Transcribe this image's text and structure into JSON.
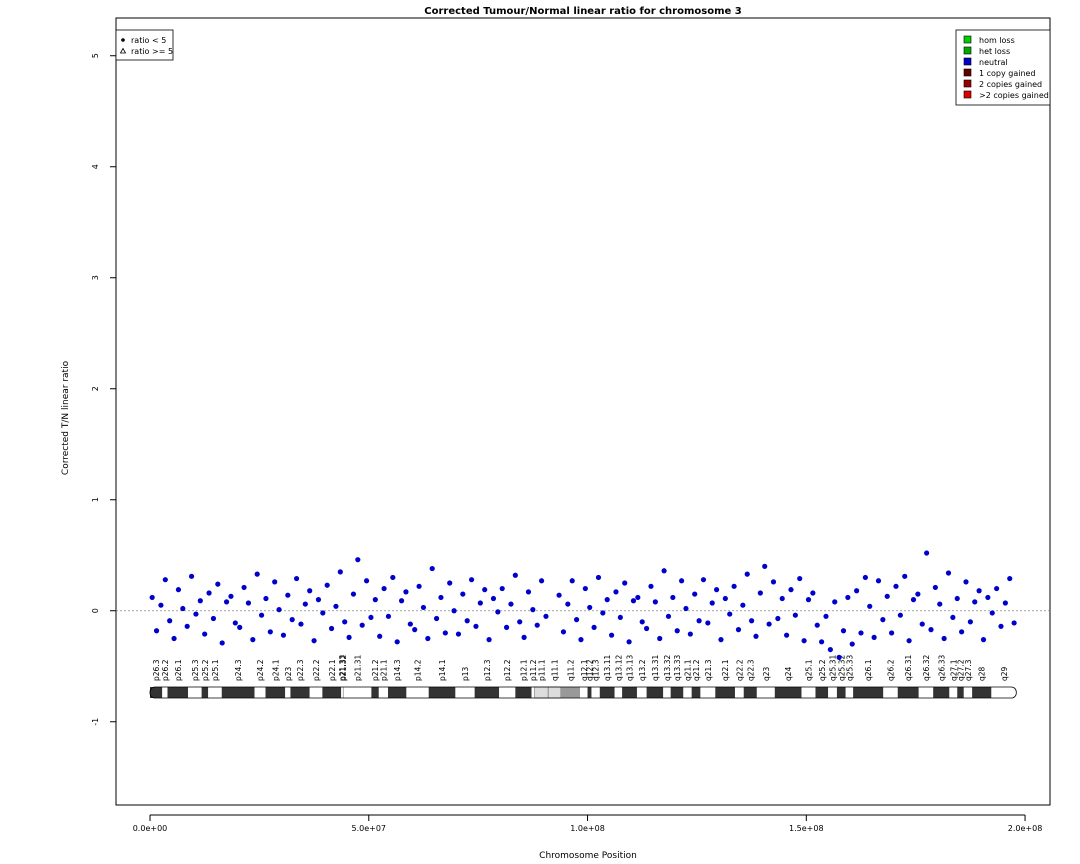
{
  "chart_data": {
    "type": "scatter",
    "title": "Corrected Tumour/Normal linear ratio for chromosome  3",
    "x_label": "Chromosome Position",
    "y_label": "Corrected T/N linear ratio",
    "xlim": [
      -7770000.0,
      205700000.0
    ],
    "ylim": [
      -1.75,
      5.34
    ],
    "xticks": [
      {
        "value": 0,
        "label": "0.0e+00"
      },
      {
        "value": 50000000.0,
        "label": "5.0e+07"
      },
      {
        "value": 100000000.0,
        "label": "1.0e+08"
      },
      {
        "value": 150000000.0,
        "label": "1.5e+08"
      },
      {
        "value": 200000000.0,
        "label": "2.0e+08"
      }
    ],
    "yticks": [
      -1,
      0,
      1,
      2,
      3,
      4,
      5
    ],
    "hline": 0,
    "series": [
      {
        "name": "neutral",
        "color": "#0000cc",
        "x": [
          500000.0,
          1500000.0,
          2500000.0,
          3500000.0,
          4500000.0,
          5500000.0,
          6500000.0,
          7500000.0,
          8500000.0,
          9500000.0,
          10500000.0,
          11500000.0,
          12500000.0,
          13500000.0,
          14500000.0,
          15500000.0,
          16500000.0,
          17500000.0,
          18500000.0,
          19500000.0,
          20500000.0,
          21500000.0,
          22500000.0,
          23500000.0,
          24500000.0,
          25500000.0,
          26500000.0,
          27500000.0,
          28500000.0,
          29500000.0,
          30500000.0,
          31500000.0,
          32500000.0,
          33500000.0,
          34500000.0,
          35500000.0,
          36500000.0,
          37500000.0,
          38500000.0,
          39500000.0,
          40500000.0,
          41500000.0,
          42500000.0,
          43500000.0,
          44500000.0,
          45500000.0,
          46500000.0,
          47500000.0,
          48500000.0,
          49500000.0,
          50500000.0,
          51500000.0,
          52500000.0,
          53500000.0,
          54500000.0,
          55500000.0,
          56500000.0,
          57500000.0,
          58500000.0,
          59500000.0,
          60500000.0,
          61500000.0,
          62500000.0,
          63500000.0,
          64500000.0,
          65500000.0,
          66500000.0,
          67500000.0,
          68500000.0,
          69500000.0,
          70500000.0,
          71500000.0,
          72500000.0,
          73500000.0,
          74500000.0,
          75500000.0,
          76500000.0,
          77500000.0,
          78500000.0,
          79500000.0,
          80500000.0,
          81500000.0,
          82500000.0,
          83500000.0,
          84500000.0,
          85500000.0,
          86500000.0,
          87500000.0,
          88500000.0,
          89500000.0,
          90500000.0,
          93500000.0,
          94500000.0,
          95500000.0,
          96500000.0,
          97500000.0,
          98500000.0,
          99500000.0,
          100500000.0,
          101500000.0,
          102500000.0,
          103500000.0,
          104500000.0,
          105500000.0,
          106500000.0,
          107500000.0,
          108500000.0,
          109500000.0,
          110500000.0,
          111500000.0,
          112500000.0,
          113500000.0,
          114500000.0,
          115500000.0,
          116500000.0,
          117500000.0,
          118500000.0,
          119500000.0,
          120500000.0,
          121500000.0,
          122500000.0,
          123500000.0,
          124500000.0,
          125500000.0,
          126500000.0,
          127500000.0,
          128500000.0,
          129500000.0,
          130500000.0,
          131500000.0,
          132500000.0,
          133500000.0,
          134500000.0,
          135500000.0,
          136500000.0,
          137500000.0,
          138500000.0,
          139500000.0,
          140500000.0,
          141500000.0,
          142500000.0,
          143500000.0,
          144500000.0,
          145500000.0,
          146500000.0,
          147500000.0,
          148500000.0,
          149500000.0,
          150500000.0,
          151500000.0,
          152500000.0,
          153500000.0,
          154500000.0,
          155500000.0,
          156500000.0,
          157500000.0,
          158500000.0,
          159500000.0,
          160500000.0,
          161500000.0,
          162500000.0,
          163500000.0,
          164500000.0,
          165500000.0,
          166500000.0,
          167500000.0,
          168500000.0,
          169500000.0,
          170500000.0,
          171500000.0,
          172500000.0,
          173500000.0,
          174500000.0,
          175500000.0,
          176500000.0,
          177500000.0,
          178500000.0,
          179500000.0,
          180500000.0,
          181500000.0,
          182500000.0,
          183500000.0,
          184500000.0,
          185500000.0,
          186500000.0,
          187500000.0,
          188500000.0,
          189500000.0,
          190500000.0,
          191500000.0,
          192500000.0,
          193500000.0,
          194500000.0,
          195500000.0,
          196500000.0,
          197500000.0
        ],
        "values": [
          0.12,
          -0.18,
          0.05,
          0.28,
          -0.09,
          -0.25,
          0.19,
          0.02,
          -0.14,
          0.31,
          -0.03,
          0.09,
          -0.21,
          0.16,
          -0.07,
          0.24,
          -0.29,
          0.08,
          0.13,
          -0.11,
          -0.15,
          0.21,
          0.07,
          -0.26,
          0.33,
          -0.04,
          0.11,
          -0.19,
          0.26,
          0.01,
          -0.22,
          0.14,
          -0.08,
          0.29,
          -0.12,
          0.06,
          0.18,
          -0.27,
          0.1,
          -0.02,
          0.23,
          -0.16,
          0.04,
          0.35,
          -0.1,
          -0.24,
          0.15,
          0.46,
          -0.13,
          0.27,
          -0.06,
          0.1,
          -0.23,
          0.2,
          -0.05,
          0.3,
          -0.28,
          0.09,
          0.17,
          -0.12,
          -0.17,
          0.22,
          0.03,
          -0.25,
          0.38,
          -0.07,
          0.12,
          -0.2,
          0.25,
          0.0,
          -0.21,
          0.15,
          -0.09,
          0.28,
          -0.14,
          0.07,
          0.19,
          -0.26,
          0.11,
          -0.01,
          0.2,
          -0.15,
          0.06,
          0.32,
          -0.1,
          -0.24,
          0.17,
          0.01,
          -0.13,
          0.27,
          -0.05,
          0.14,
          -0.19,
          0.06,
          0.27,
          -0.08,
          -0.26,
          0.2,
          0.03,
          -0.15,
          0.3,
          -0.02,
          0.1,
          -0.22,
          0.17,
          -0.06,
          0.25,
          -0.28,
          0.09,
          0.12,
          -0.1,
          -0.16,
          0.22,
          0.08,
          -0.25,
          0.36,
          -0.05,
          0.12,
          -0.18,
          0.27,
          0.02,
          -0.21,
          0.15,
          -0.09,
          0.28,
          -0.11,
          0.07,
          0.19,
          -0.26,
          0.11,
          -0.03,
          0.22,
          -0.17,
          0.05,
          0.33,
          -0.09,
          -0.23,
          0.16,
          0.4,
          -0.12,
          0.26,
          -0.07,
          0.11,
          -0.22,
          0.19,
          -0.04,
          0.29,
          -0.27,
          0.1,
          0.16,
          -0.13,
          -0.28,
          -0.05,
          -0.35,
          0.08,
          -0.42,
          -0.18,
          0.12,
          -0.3,
          0.18,
          -0.2,
          0.3,
          0.04,
          -0.24,
          0.27,
          -0.08,
          0.13,
          -0.2,
          0.22,
          -0.04,
          0.31,
          -0.27,
          0.1,
          0.15,
          -0.12,
          0.52,
          -0.17,
          0.21,
          0.06,
          -0.25,
          0.34,
          -0.06,
          0.11,
          -0.19,
          0.26,
          -0.1,
          0.08,
          0.18,
          -0.26,
          0.12,
          -0.02,
          0.2,
          -0.14,
          0.07,
          0.29,
          -0.11
        ]
      }
    ],
    "point_legend": [
      "ratio < 5",
      "ratio >= 5"
    ],
    "legend": [
      {
        "name": "hom loss",
        "color": "#00cc00"
      },
      {
        "name": "het loss",
        "color": "#00aa00"
      },
      {
        "name": "neutral",
        "color": "#0000cc"
      },
      {
        "name": "1 copy gained",
        "color": "#660000"
      },
      {
        "name": "2 copies gained",
        "color": "#990000"
      },
      {
        "name": ">2 copies gained",
        "color": "#dd0000"
      }
    ],
    "ideogram": {
      "stain_colors": {
        "gneg": "#ffffff",
        "gpos25": "#333333",
        "gpos50": "#333333",
        "gpos75": "#333333",
        "gpos100": "#333333",
        "gvar": "#999999",
        "acen": "#dddddd"
      },
      "names": [
        "p26.3",
        "p26.2",
        "p26.1",
        "p25.3",
        "p25.2",
        "p25.1",
        "p24.3",
        "p24.2",
        "p24.1",
        "p23",
        "p22.3",
        "p22.2",
        "p22.1",
        "p21.33",
        "p21.32",
        "p21.31",
        "p21.2",
        "p21.1",
        "p14.3",
        "p14.2",
        "p14.1",
        "p13",
        "p12.3",
        "p12.2",
        "p12.1",
        "p11.2",
        "p11.1",
        "q11.1",
        "q11.2",
        "q12.1",
        "q12.2",
        "q12.3",
        "q13.11",
        "q13.12",
        "q13.13",
        "q13.2",
        "q13.31",
        "q13.32",
        "q13.33",
        "q21.1",
        "q21.2",
        "q21.3",
        "q22.1",
        "q22.2",
        "q22.3",
        "q23",
        "q24",
        "q25.1",
        "q25.2",
        "q25.31",
        "q25.32",
        "q25.33",
        "q26.1",
        "q26.2",
        "q26.31",
        "q26.32",
        "q26.33",
        "q27.1",
        "q27.2",
        "q27.3",
        "q28",
        "q29"
      ],
      "starts": [
        0,
        2800000.0,
        4000000.0,
        8700000.0,
        11800000.0,
        13300000.0,
        16400000.0,
        23900000.0,
        26400000.0,
        30900000.0,
        32100000.0,
        36500000.0,
        39400000.0,
        43700000.0,
        44100000.0,
        44200000.0,
        50600000.0,
        52300000.0,
        54400000.0,
        58600000.0,
        63700000.0,
        69800000.0,
        74200000.0,
        79800000.0,
        83500000.0,
        87200000.0,
        87900000.0,
        91000000.0,
        93900000.0,
        98300000.0,
        100000000.0,
        100900000.0,
        102800000.0,
        106200000.0,
        107900000.0,
        111300000.0,
        113500000.0,
        117300000.0,
        119000000.0,
        121900000.0,
        123800000.0,
        125800000.0,
        129200000.0,
        133700000.0,
        135700000.0,
        138700000.0,
        142800000.0,
        148900000.0,
        152100000.0,
        155000000.0,
        157000000.0,
        159000000.0,
        160700000.0,
        167600000.0,
        170900000.0,
        175700000.0,
        179000000.0,
        182700000.0,
        184500000.0,
        186000000.0,
        187900000.0,
        192300000.0
      ],
      "ends": [
        2800000.0,
        4000000.0,
        8700000.0,
        11800000.0,
        13300000.0,
        16400000.0,
        23900000.0,
        26400000.0,
        30900000.0,
        32100000.0,
        36500000.0,
        39400000.0,
        43700000.0,
        44100000.0,
        44200000.0,
        50600000.0,
        52300000.0,
        54400000.0,
        58600000.0,
        63700000.0,
        69800000.0,
        74200000.0,
        79800000.0,
        83500000.0,
        87200000.0,
        87900000.0,
        91000000.0,
        93900000.0,
        98300000.0,
        100000000.0,
        100900000.0,
        102800000.0,
        106200000.0,
        107900000.0,
        111300000.0,
        113500000.0,
        117300000.0,
        119000000.0,
        121900000.0,
        123800000.0,
        125800000.0,
        129200000.0,
        133700000.0,
        135700000.0,
        138700000.0,
        142800000.0,
        148900000.0,
        152100000.0,
        155000000.0,
        157000000.0,
        159000000.0,
        160700000.0,
        167600000.0,
        170900000.0,
        175700000.0,
        179000000.0,
        182700000.0,
        184500000.0,
        186000000.0,
        187900000.0,
        192300000.0,
        198000000.0
      ],
      "stains": [
        "gpos50",
        "gneg",
        "gpos50",
        "gneg",
        "gpos25",
        "gneg",
        "gpos100",
        "gneg",
        "gpos75",
        "gneg",
        "gpos50",
        "gneg",
        "gpos75",
        "gneg",
        "gpos50",
        "gneg",
        "gpos25",
        "gneg",
        "gpos50",
        "gneg",
        "gpos50",
        "gneg",
        "gpos75",
        "gneg",
        "gpos75",
        "gneg",
        "acen",
        "acen",
        "gvar",
        "gneg",
        "gpos25",
        "gneg",
        "gpos75",
        "gneg",
        "gpos50",
        "gneg",
        "gpos100",
        "gneg",
        "gpos75",
        "gneg",
        "gpos25",
        "gneg",
        "gpos25",
        "gneg",
        "gpos25",
        "gneg",
        "gpos100",
        "gneg",
        "gpos50",
        "gneg",
        "gpos50",
        "gneg",
        "gpos100",
        "gneg",
        "gpos75",
        "gneg",
        "gpos75",
        "gneg",
        "gpos25",
        "gneg",
        "gpos75",
        "gneg"
      ]
    }
  }
}
